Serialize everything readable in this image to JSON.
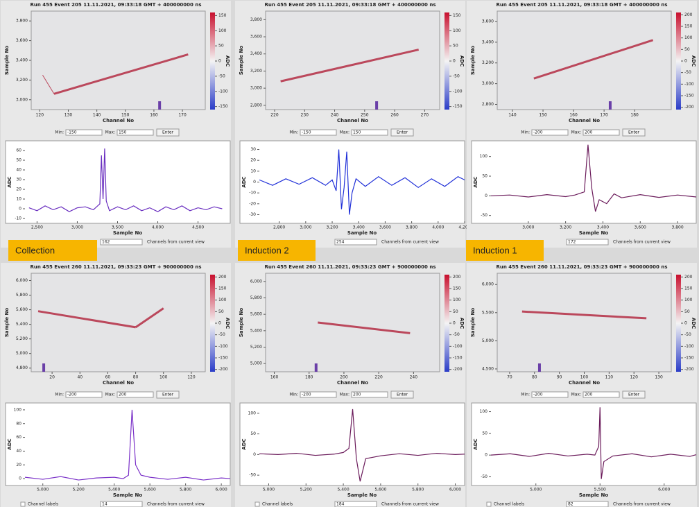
{
  "labels": [
    "Collection",
    "Induction 2",
    "Induction 1"
  ],
  "colorbar_colors": [
    "#c8102e",
    "#f4f4f4",
    "#2a3cc8"
  ],
  "track_color": "#b0203a",
  "panels": [
    {
      "title": "Run 455 Event 205 11.11.2021, 09:33:18 GMT + 400000000 ns",
      "heatmap": {
        "xlabel": "Channel No",
        "ylabel": "Sample No",
        "cbar_label": "ADC",
        "xlim": [
          117,
          178
        ],
        "xticks": [
          120,
          130,
          140,
          150,
          160,
          170
        ],
        "ylim": [
          2900,
          3900
        ],
        "yticks": [
          {
            "value": 3000,
            "label": "3,000"
          },
          {
            "value": 3200,
            "label": "3,200"
          },
          {
            "value": 3400,
            "label": "3,400"
          },
          {
            "value": 3600,
            "label": "3,600"
          },
          {
            "value": 3800,
            "label": "3,800"
          }
        ],
        "clim": [
          -160,
          160
        ],
        "cticks": [
          150,
          100,
          50,
          0,
          -50,
          -100,
          -150
        ],
        "tracks": [
          {
            "x": [
              121,
              125
            ],
            "y": [
              3250,
              3060
            ]
          },
          {
            "x": [
              125,
              172
            ],
            "y": [
              3060,
              3460
            ]
          }
        ],
        "marker": 162
      },
      "min_label": "Min:",
      "min": -150,
      "max_label": "Max:",
      "max": 150,
      "enter": "Enter",
      "waveform": {
        "xlabel": "Sample No",
        "ylabel": "ADC",
        "color": "#6a2fc0",
        "xlim": [
          2350,
          4900
        ],
        "xticks": [
          {
            "value": 2500,
            "label": "2,500"
          },
          {
            "value": 3000,
            "label": "3,000"
          },
          {
            "value": 3500,
            "label": "3,500"
          },
          {
            "value": 4000,
            "label": "4,000"
          },
          {
            "value": 4500,
            "label": "4,500"
          }
        ],
        "ylim": [
          -15,
          70
        ],
        "yticks": [
          -10,
          0,
          10,
          20,
          30,
          40,
          50,
          60
        ],
        "x": [
          2400,
          2500,
          2600,
          2700,
          2800,
          2900,
          3000,
          3100,
          3200,
          3280,
          3300,
          3320,
          3340,
          3360,
          3380,
          3400,
          3500,
          3600,
          3700,
          3800,
          3900,
          4000,
          4100,
          4200,
          4300,
          4400,
          4500,
          4600,
          4700,
          4800
        ],
        "values": [
          1,
          -2,
          3,
          -1,
          2,
          -3,
          1,
          2,
          -1,
          5,
          55,
          10,
          62,
          8,
          3,
          -2,
          2,
          -1,
          3,
          -2,
          1,
          -3,
          2,
          -1,
          3,
          -2,
          1,
          -1,
          2,
          0
        ]
      },
      "channel": 162,
      "channels_text": "Channels from current view"
    },
    {
      "title": "Run 455 Event 205 11.11.2021, 09:33:18 GMT + 400000000 ns",
      "heatmap": {
        "xlabel": "Channel No",
        "ylabel": "Sample No",
        "cbar_label": "ADC",
        "xlim": [
          217,
          275
        ],
        "xticks": [
          220,
          230,
          240,
          250,
          260,
          270
        ],
        "ylim": [
          2750,
          3900
        ],
        "yticks": [
          {
            "value": 2800,
            "label": "2,800"
          },
          {
            "value": 3000,
            "label": "3,000"
          },
          {
            "value": 3200,
            "label": "3,200"
          },
          {
            "value": 3400,
            "label": "3,400"
          },
          {
            "value": 3600,
            "label": "3,600"
          },
          {
            "value": 3800,
            "label": "3,800"
          }
        ],
        "clim": [
          -160,
          160
        ],
        "cticks": [
          150,
          100,
          50,
          0,
          -50,
          -100,
          -150
        ],
        "tracks": [
          {
            "x": [
              222,
              268
            ],
            "y": [
              3080,
              3450
            ]
          }
        ],
        "marker": 254
      },
      "min_label": "Min:",
      "min": -150,
      "max_label": "Max:",
      "max": 150,
      "enter": "Enter",
      "waveform": {
        "xlabel": "Sample No",
        "ylabel": "ADC",
        "color": "#1f2fd8",
        "xlim": [
          2650,
          4200
        ],
        "xticks": [
          {
            "value": 2800,
            "label": "2,800"
          },
          {
            "value": 3000,
            "label": "3,000"
          },
          {
            "value": 3200,
            "label": "3,200"
          },
          {
            "value": 3400,
            "label": "3,400"
          },
          {
            "value": 3600,
            "label": "3,600"
          },
          {
            "value": 3800,
            "label": "3,800"
          },
          {
            "value": 4000,
            "label": "4,000"
          },
          {
            "value": 4200,
            "label": "4,200"
          }
        ],
        "ylim": [
          -38,
          38
        ],
        "yticks": [
          -30,
          -20,
          -10,
          0,
          10,
          20,
          30
        ],
        "x": [
          2650,
          2750,
          2850,
          2950,
          3050,
          3150,
          3200,
          3230,
          3250,
          3270,
          3290,
          3310,
          3330,
          3350,
          3380,
          3450,
          3550,
          3650,
          3750,
          3850,
          3950,
          4050,
          4150,
          4200
        ],
        "values": [
          2,
          -3,
          3,
          -2,
          4,
          -3,
          2,
          -8,
          30,
          -25,
          -5,
          28,
          -30,
          -10,
          3,
          -4,
          5,
          -3,
          4,
          -5,
          3,
          -4,
          5,
          2
        ]
      },
      "channel": 254,
      "channels_text": "Channels from current view"
    },
    {
      "title": "Run 455 Event 205 11.11.2021, 09:33:18 GMT + 400000000 ns",
      "heatmap": {
        "xlabel": "Channel No",
        "ylabel": "Sample No",
        "cbar_label": "ADC",
        "xlim": [
          135,
          192
        ],
        "xticks": [
          140,
          150,
          160,
          170,
          180
        ],
        "ylim": [
          2750,
          3700
        ],
        "yticks": [
          {
            "value": 2800,
            "label": "2,800"
          },
          {
            "value": 3000,
            "label": "3,000"
          },
          {
            "value": 3200,
            "label": "3,200"
          },
          {
            "value": 3400,
            "label": "3,400"
          },
          {
            "value": 3600,
            "label": "3,600"
          }
        ],
        "clim": [
          -210,
          210
        ],
        "cticks": [
          200,
          150,
          100,
          50,
          0,
          -50,
          -100,
          -150,
          -200
        ],
        "tracks": [
          {
            "x": [
              147,
              186
            ],
            "y": [
              3050,
              3420
            ]
          }
        ],
        "marker": 172
      },
      "min_label": "Min:",
      "min": -200,
      "max_label": "Max:",
      "max": 200,
      "enter": "Enter",
      "waveform": {
        "xlabel": "Sample No",
        "ylabel": "ADC",
        "color": "#6a1a5a",
        "xlim": [
          2800,
          3900
        ],
        "xticks": [
          {
            "value": 3000,
            "label": "3,000"
          },
          {
            "value": 3200,
            "label": "3,200"
          },
          {
            "value": 3400,
            "label": "3,400"
          },
          {
            "value": 3600,
            "label": "3,600"
          },
          {
            "value": 3800,
            "label": "3,800"
          }
        ],
        "ylim": [
          -70,
          140
        ],
        "yticks": [
          -50,
          0,
          50,
          100
        ],
        "x": [
          2800,
          2900,
          3000,
          3100,
          3200,
          3250,
          3300,
          3320,
          3340,
          3360,
          3380,
          3420,
          3460,
          3500,
          3600,
          3700,
          3800,
          3900
        ],
        "values": [
          0,
          2,
          -3,
          3,
          -2,
          2,
          10,
          130,
          20,
          -40,
          -10,
          -20,
          5,
          -5,
          3,
          -4,
          2,
          -3
        ]
      },
      "channel": 172,
      "channels_text": "Channels from current view"
    },
    {
      "title": "Run 455 Event 260 11.11.2021, 09:33:23 GMT + 900000000 ns",
      "heatmap": {
        "xlabel": "Channel No",
        "ylabel": "Sample No",
        "cbar_label": "ADC",
        "xlim": [
          5,
          130
        ],
        "xticks": [
          20,
          40,
          60,
          80,
          100,
          120
        ],
        "ylim": [
          4750,
          6100
        ],
        "yticks": [
          {
            "value": 4800,
            "label": "4,800"
          },
          {
            "value": 5000,
            "label": "5,000"
          },
          {
            "value": 5200,
            "label": "5,200"
          },
          {
            "value": 5400,
            "label": "5,400"
          },
          {
            "value": 5600,
            "label": "5,600"
          },
          {
            "value": 5800,
            "label": "5,800"
          },
          {
            "value": 6000,
            "label": "6,000"
          }
        ],
        "clim": [
          -210,
          210
        ],
        "cticks": [
          200,
          150,
          100,
          50,
          0,
          -50,
          -100,
          -150,
          -200
        ],
        "tracks": [
          {
            "x": [
              10,
              80
            ],
            "y": [
              5580,
              5360
            ]
          },
          {
            "x": [
              80,
              100
            ],
            "y": [
              5360,
              5620
            ]
          }
        ],
        "marker": 14
      },
      "min_label": "Min:",
      "min": -200,
      "max_label": "Max:",
      "max": 200,
      "enter": "Enter",
      "waveform": {
        "xlabel": "Sample No",
        "ylabel": "ADC",
        "color": "#7a30c8",
        "xlim": [
          4900,
          6050
        ],
        "xticks": [
          {
            "value": 5000,
            "label": "5,000"
          },
          {
            "value": 5200,
            "label": "5,200"
          },
          {
            "value": 5400,
            "label": "5,400"
          },
          {
            "value": 5600,
            "label": "5,600"
          },
          {
            "value": 5800,
            "label": "5,800"
          },
          {
            "value": 6000,
            "label": "6,000"
          }
        ],
        "ylim": [
          -10,
          110
        ],
        "yticks": [
          0,
          20,
          40,
          60,
          80,
          100
        ],
        "x": [
          4900,
          5000,
          5100,
          5200,
          5300,
          5400,
          5450,
          5480,
          5500,
          5520,
          5550,
          5600,
          5700,
          5800,
          5900,
          6000,
          6050
        ],
        "values": [
          2,
          -1,
          3,
          -2,
          1,
          2,
          0,
          5,
          100,
          20,
          5,
          2,
          -1,
          2,
          -2,
          1,
          0
        ]
      },
      "channel": 14,
      "channel_labels": "Channel labels",
      "channels_text": "Channels from current view"
    },
    {
      "title": "Run 455 Event 260 11.11.2021, 09:33:23 GMT + 900000000 ns",
      "heatmap": {
        "xlabel": "Channel No",
        "ylabel": "Sample No",
        "cbar_label": "ADC",
        "xlim": [
          155,
          255
        ],
        "xticks": [
          160,
          180,
          200,
          220,
          240
        ],
        "ylim": [
          4900,
          6100
        ],
        "yticks": [
          {
            "value": 5000,
            "label": "5,000"
          },
          {
            "value": 5200,
            "label": "5,200"
          },
          {
            "value": 5400,
            "label": "5,400"
          },
          {
            "value": 5600,
            "label": "5,600"
          },
          {
            "value": 5800,
            "label": "5,800"
          },
          {
            "value": 6000,
            "label": "6,000"
          }
        ],
        "clim": [
          -210,
          210
        ],
        "cticks": [
          200,
          150,
          100,
          50,
          0,
          -50,
          -100,
          -150,
          -200
        ],
        "tracks": [
          {
            "x": [
              185,
              238
            ],
            "y": [
              5500,
              5370
            ]
          }
        ],
        "marker": 184
      },
      "min_label": "Min:",
      "min": -200,
      "max_label": "Max:",
      "max": 200,
      "enter": "Enter",
      "waveform": {
        "xlabel": "Sample No",
        "ylabel": "ADC",
        "color": "#6a1a5a",
        "xlim": [
          4950,
          6050
        ],
        "xticks": [
          {
            "value": 5000,
            "label": "5,000"
          },
          {
            "value": 5200,
            "label": "5,200"
          },
          {
            "value": 5400,
            "label": "5,400"
          },
          {
            "value": 5600,
            "label": "5,600"
          },
          {
            "value": 5800,
            "label": "5,800"
          },
          {
            "value": 6000,
            "label": "6,000"
          }
        ],
        "ylim": [
          -75,
          125
        ],
        "yticks": [
          -50,
          0,
          50,
          100
        ],
        "x": [
          4950,
          5050,
          5150,
          5250,
          5350,
          5400,
          5430,
          5450,
          5470,
          5490,
          5520,
          5600,
          5700,
          5800,
          5900,
          6000,
          6050
        ],
        "values": [
          2,
          0,
          3,
          -2,
          1,
          5,
          15,
          110,
          -10,
          -65,
          -10,
          -3,
          2,
          -2,
          3,
          0,
          1
        ]
      },
      "channel": 184,
      "channel_labels": "Channel labels",
      "channels_text": "Channels from current view"
    },
    {
      "title": "Run 455 Event 260 11.11.2021, 09:33:23 GMT + 900000000 ns",
      "heatmap": {
        "xlabel": "Channel No",
        "ylabel": "Sample No",
        "cbar_label": "ADC",
        "xlim": [
          65,
          135
        ],
        "xticks": [
          70,
          80,
          90,
          100,
          110,
          120,
          130
        ],
        "ylim": [
          4450,
          6200
        ],
        "yticks": [
          {
            "value": 4500,
            "label": "4,500"
          },
          {
            "value": 5000,
            "label": "5,000"
          },
          {
            "value": 5500,
            "label": "5,500"
          },
          {
            "value": 6000,
            "label": "6,000"
          }
        ],
        "clim": [
          -210,
          210
        ],
        "cticks": [
          200,
          150,
          100,
          50,
          0,
          -50,
          -100,
          -150,
          -200
        ],
        "tracks": [
          {
            "x": [
              75,
              125
            ],
            "y": [
              5520,
              5400
            ]
          }
        ],
        "marker": 82
      },
      "min_label": "Min:",
      "min": -200,
      "max_label": "Max:",
      "max": 200,
      "enter": "Enter",
      "waveform": {
        "xlabel": "Sample No",
        "ylabel": "ADC",
        "color": "#6a1a5a",
        "xlim": [
          4650,
          6250
        ],
        "xticks": [
          {
            "value": 5000,
            "label": "5,000"
          },
          {
            "value": 5500,
            "label": "5,500"
          },
          {
            "value": 6000,
            "label": "6,000"
          }
        ],
        "ylim": [
          -70,
          120
        ],
        "yticks": [
          -50,
          0,
          50,
          100
        ],
        "x": [
          4650,
          4800,
          4950,
          5100,
          5250,
          5400,
          5460,
          5490,
          5500,
          5510,
          5530,
          5600,
          5750,
          5900,
          6050,
          6200,
          6250
        ],
        "values": [
          0,
          3,
          -3,
          4,
          -2,
          2,
          0,
          20,
          110,
          -55,
          -15,
          -2,
          3,
          -4,
          2,
          -3,
          1
        ]
      },
      "channel": 82,
      "channel_labels": "Channel labels",
      "channels_text": "Channels from current view"
    }
  ]
}
